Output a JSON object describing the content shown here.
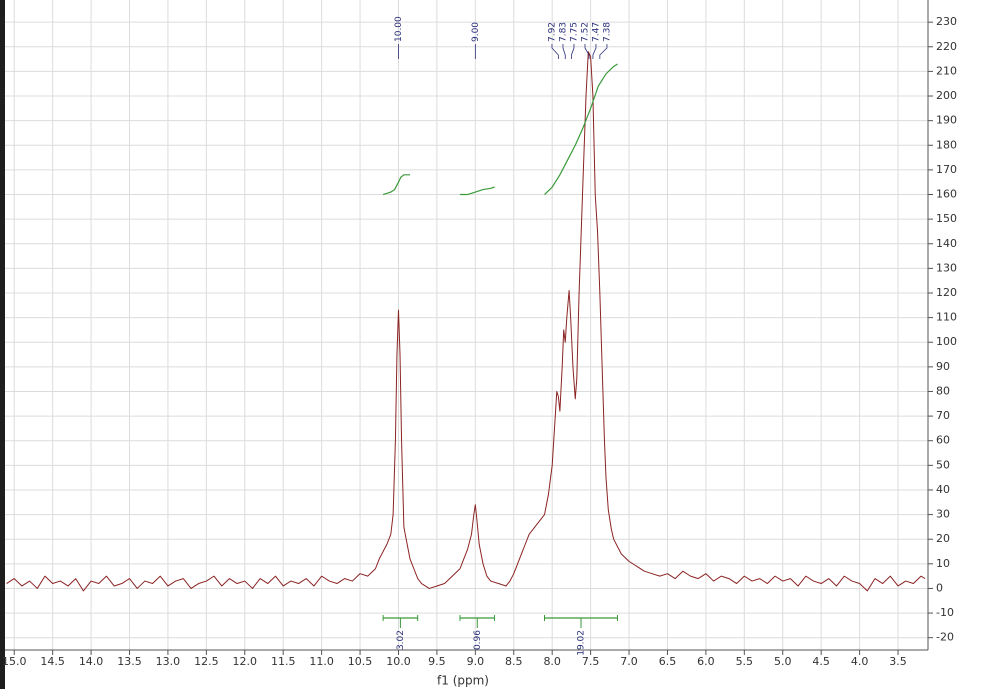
{
  "chart_data": {
    "type": "line",
    "xlabel": "f1 (ppm)",
    "xlim": [
      15.12,
      3.11
    ],
    "ylim": [
      -25,
      239
    ],
    "grid": true,
    "xticks": [
      {
        "value": 15,
        "label": "15.0"
      },
      14.5,
      {
        "value": 14,
        "label": "14.0"
      },
      13.5,
      {
        "value": 13,
        "label": "13.0"
      },
      12.5,
      {
        "value": 12,
        "label": "12.0"
      },
      11.5,
      {
        "value": 11,
        "label": "11.0"
      },
      10.5,
      {
        "value": 10,
        "label": "10.0"
      },
      9.5,
      {
        "value": 9,
        "label": "9.0"
      },
      8.5,
      {
        "value": 8,
        "label": "8.0"
      },
      7.5,
      {
        "value": 7,
        "label": "7.0"
      },
      6.5,
      {
        "value": 6,
        "label": "6.0"
      },
      5.5,
      {
        "value": 5,
        "label": "5.0"
      },
      4.5,
      {
        "value": 4,
        "label": "4.0"
      },
      3.5
    ],
    "yticks": [
      -20,
      -10,
      0,
      10,
      20,
      30,
      40,
      50,
      60,
      70,
      80,
      90,
      100,
      110,
      120,
      130,
      140,
      150,
      160,
      170,
      180,
      190,
      200,
      210,
      220,
      230
    ],
    "series": [
      {
        "color": "#8b2323",
        "x": [
          15.1,
          15.0,
          14.9,
          14.8,
          14.7,
          14.6,
          14.5,
          14.4,
          14.3,
          14.2,
          14.1,
          14.0,
          13.9,
          13.8,
          13.7,
          13.6,
          13.5,
          13.4,
          13.3,
          13.2,
          13.1,
          13.0,
          12.9,
          12.8,
          12.7,
          12.6,
          12.5,
          12.4,
          12.3,
          12.2,
          12.1,
          12.0,
          11.9,
          11.8,
          11.7,
          11.6,
          11.5,
          11.4,
          11.3,
          11.2,
          11.1,
          11.0,
          10.9,
          10.8,
          10.7,
          10.6,
          10.5,
          10.4,
          10.3,
          10.25,
          10.2,
          10.15,
          10.1,
          10.07,
          10.04,
          10.02,
          10.0,
          9.98,
          9.96,
          9.93,
          9.9,
          9.85,
          9.8,
          9.75,
          9.7,
          9.6,
          9.5,
          9.4,
          9.3,
          9.2,
          9.15,
          9.1,
          9.05,
          9.02,
          9.0,
          8.98,
          8.95,
          8.9,
          8.85,
          8.8,
          8.7,
          8.6,
          8.55,
          8.5,
          8.45,
          8.4,
          8.35,
          8.3,
          8.2,
          8.15,
          8.1,
          8.05,
          8.0,
          7.97,
          7.94,
          7.92,
          7.9,
          7.87,
          7.85,
          7.83,
          7.81,
          7.78,
          7.76,
          7.73,
          7.7,
          7.68,
          7.65,
          7.6,
          7.56,
          7.53,
          7.5,
          7.47,
          7.44,
          7.41,
          7.38,
          7.35,
          7.32,
          7.3,
          7.27,
          7.23,
          7.2,
          7.15,
          7.1,
          7.0,
          6.9,
          6.8,
          6.7,
          6.6,
          6.5,
          6.4,
          6.3,
          6.2,
          6.1,
          6.0,
          5.9,
          5.8,
          5.7,
          5.6,
          5.5,
          5.4,
          5.3,
          5.2,
          5.1,
          5.0,
          4.9,
          4.8,
          4.7,
          4.6,
          4.5,
          4.4,
          4.3,
          4.2,
          4.1,
          4.0,
          3.9,
          3.8,
          3.7,
          3.6,
          3.5,
          3.4,
          3.3,
          3.2,
          3.15
        ],
        "values": [
          2,
          4,
          1,
          3,
          0,
          5,
          2,
          3,
          1,
          4,
          -1,
          3,
          2,
          5,
          1,
          2,
          4,
          0,
          3,
          2,
          5,
          1,
          3,
          4,
          0,
          2,
          3,
          5,
          1,
          4,
          2,
          3,
          0,
          4,
          2,
          5,
          1,
          3,
          2,
          4,
          1,
          5,
          3,
          2,
          4,
          3,
          6,
          5,
          8,
          12,
          15,
          18,
          22,
          30,
          60,
          95,
          113,
          95,
          60,
          25,
          20,
          12,
          8,
          4,
          2,
          0,
          1,
          2,
          5,
          8,
          12,
          16,
          22,
          30,
          34,
          28,
          18,
          10,
          5,
          3,
          2,
          1,
          3,
          6,
          10,
          14,
          18,
          22,
          26,
          28,
          30,
          38,
          50,
          65,
          80,
          78,
          72,
          90,
          105,
          100,
          110,
          121,
          110,
          90,
          77,
          85,
          120,
          165,
          200,
          218,
          216,
          200,
          160,
          145,
          120,
          90,
          60,
          45,
          32,
          24,
          20,
          17,
          14,
          11,
          9,
          7,
          6,
          5,
          6,
          4,
          7,
          5,
          4,
          6,
          3,
          5,
          4,
          2,
          5,
          3,
          4,
          2,
          5,
          3,
          4,
          1,
          5,
          3,
          2,
          4,
          1,
          5,
          3,
          2,
          -1,
          4,
          2,
          5,
          1,
          3,
          2,
          5,
          4
        ]
      }
    ],
    "integral_color": "#3a9a3a",
    "integrals": [
      {
        "label": "3.02",
        "range": [
          10.2,
          9.75
        ],
        "x": [
          10.2,
          10.1,
          10.05,
          10.0,
          9.97,
          9.93,
          9.85
        ],
        "values": [
          160,
          161,
          162,
          165,
          167,
          168,
          168
        ]
      },
      {
        "label": "0.96",
        "range": [
          9.2,
          8.75
        ],
        "x": [
          9.2,
          9.1,
          9.0,
          8.9,
          8.8,
          8.75
        ],
        "values": [
          160,
          160,
          161,
          162,
          162.5,
          163
        ]
      },
      {
        "label": "19.02",
        "range": [
          8.1,
          7.15
        ],
        "x": [
          8.1,
          8.0,
          7.9,
          7.8,
          7.7,
          7.6,
          7.5,
          7.4,
          7.3,
          7.2,
          7.15
        ],
        "values": [
          160,
          163,
          168,
          174,
          180,
          187,
          195,
          204,
          209,
          212,
          213
        ]
      }
    ],
    "peaks": [
      {
        "label": "10.00",
        "x": 10.0
      },
      {
        "label": "9.00",
        "x": 9.0
      },
      {
        "label": "7.92",
        "x": 7.92
      },
      {
        "label": "7.83",
        "x": 7.83
      },
      {
        "label": "7.75",
        "x": 7.75
      },
      {
        "label": "7.52",
        "x": 7.52
      },
      {
        "label": "7.47",
        "x": 7.47
      },
      {
        "label": "7.38",
        "x": 7.38
      }
    ]
  }
}
